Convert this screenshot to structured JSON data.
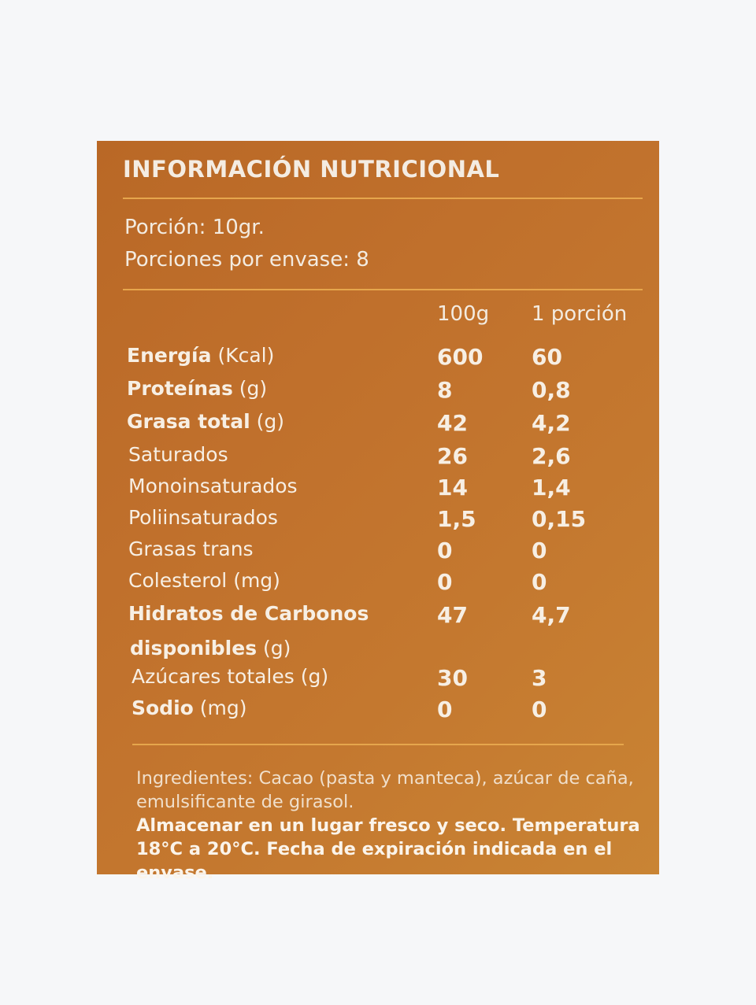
{
  "label": {
    "title": "INFORMACIÓN NUTRICIONAL",
    "serving_size": "Porción: 10gr.",
    "servings_per_container": "Porciones por envase: 8",
    "columns": {
      "per_100g": "100g",
      "per_portion": "1 porción"
    },
    "rows": [
      {
        "bold": "Energía",
        "unit": " (Kcal)",
        "per_100g": "600",
        "per_portion": "60"
      },
      {
        "bold": "Proteínas",
        "unit": " (g)",
        "per_100g": "8",
        "per_portion": "0,8"
      },
      {
        "bold": "Grasa total",
        "unit": " (g)",
        "per_100g": "42",
        "per_portion": "4,2"
      },
      {
        "bold": "",
        "unit": "Saturados",
        "per_100g": "26",
        "per_portion": "2,6"
      },
      {
        "bold": "",
        "unit": "Monoinsaturados",
        "per_100g": "14",
        "per_portion": "1,4"
      },
      {
        "bold": "",
        "unit": "Poliinsaturados",
        "per_100g": "1,5",
        "per_portion": "0,15"
      },
      {
        "bold": "",
        "unit": "Grasas trans",
        "per_100g": "0",
        "per_portion": "0"
      },
      {
        "bold": "",
        "unit": "Colesterol (mg)",
        "per_100g": "0",
        "per_portion": "0"
      },
      {
        "bold": "Hidratos de Carbonos",
        "unit": "",
        "per_100g": "47",
        "per_portion": "4,7"
      },
      {
        "bold": "",
        "unit": "Azúcares totales (g)",
        "per_100g": "30",
        "per_portion": "3"
      },
      {
        "bold": "Sodio",
        "unit": " (mg)",
        "per_100g": "0",
        "per_portion": "0"
      }
    ],
    "carb_continuation_bold": "disponibles",
    "carb_continuation_unit": " (g)",
    "ingredients": "Ingredientes: Cacao (pasta y manteca), azúcar de caña, emulsificante de girasol.",
    "storage": "Almacenar en un lugar fresco y seco. Temperatura 18°C a 20°C. Fecha de expiración indicada en el envase."
  }
}
